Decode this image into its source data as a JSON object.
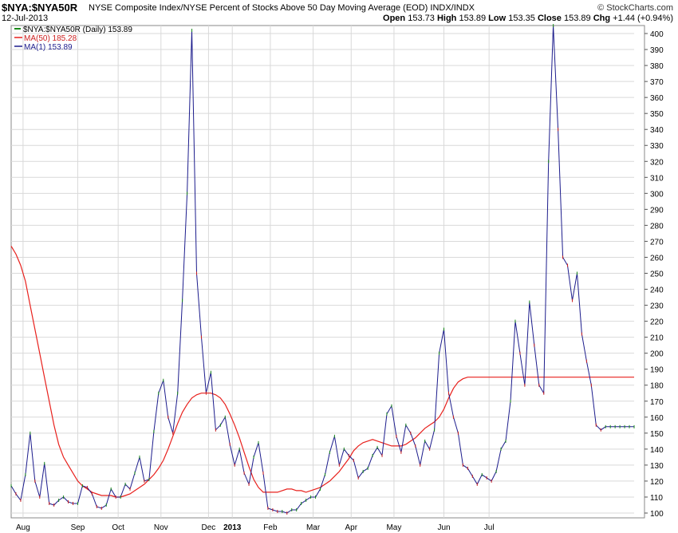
{
  "header": {
    "symbol": "$NYA:$NYA50R",
    "description": "NYSE Composite Index/NYSE Percent of Stocks Above 50 Day Moving Average (EOD) INDX/INDX",
    "date": "12-Jul-2013",
    "brand": "© StockCharts.com",
    "open_label": "Open",
    "open_value": "153.73",
    "high_label": "High",
    "high_value": "153.89",
    "low_label": "Low",
    "low_value": "153.35",
    "close_label": "Close",
    "close_value": "153.89",
    "chg_label": "Chg",
    "chg_value": "+1.44 (+0.94%)"
  },
  "legend": {
    "price": "$NYA:$NYA50R (Daily) 153.89",
    "ma50": "MA(50) 185.28",
    "ma1": "MA(1) 153.89"
  },
  "colors": {
    "price_line": "#1c1c8c",
    "ma50_line": "#e8201c",
    "grid": "#d9d9d9",
    "up_tick": "#1a8a1a",
    "down_tick": "#cc2020",
    "axis_text": "#000000"
  },
  "chart_data": {
    "type": "line",
    "ylim": [
      97,
      405
    ],
    "yticks": [
      100,
      110,
      120,
      130,
      140,
      150,
      160,
      170,
      180,
      190,
      200,
      210,
      220,
      230,
      240,
      250,
      260,
      270,
      280,
      290,
      300,
      310,
      320,
      330,
      340,
      350,
      360,
      370,
      380,
      390,
      400
    ],
    "xticks": [
      "Aug",
      "Sep",
      "Oct",
      "Nov",
      "Dec",
      "2013",
      "Feb",
      "Mar",
      "Apr",
      "May",
      "Jun",
      "Jul"
    ],
    "x_range": [
      0,
      262
    ],
    "xtick_positions": [
      5,
      28,
      45,
      63,
      83,
      93,
      109,
      127,
      143,
      161,
      182,
      201
    ],
    "grid": true,
    "legend": "top-left",
    "series": [
      {
        "name": "$NYA:$NYA50R (Daily)",
        "x": [
          0,
          2,
          4,
          6,
          8,
          10,
          12,
          14,
          16,
          18,
          20,
          22,
          24,
          26,
          28,
          30,
          32,
          34,
          36,
          38,
          40,
          42,
          44,
          46,
          48,
          50,
          52,
          54,
          56,
          58,
          60,
          62,
          64,
          66,
          68,
          70,
          72,
          74,
          76,
          78,
          80,
          82,
          84,
          86,
          88,
          90,
          92,
          94,
          96,
          98,
          100,
          102,
          104,
          106,
          108,
          110,
          112,
          114,
          116,
          118,
          120,
          122,
          124,
          126,
          128,
          130,
          132,
          134,
          136,
          138,
          140,
          142,
          144,
          146,
          148,
          150,
          152,
          154,
          156,
          158,
          160,
          162,
          164,
          166,
          168,
          170,
          172,
          174,
          176,
          178,
          180,
          182,
          184,
          186,
          188,
          190,
          192,
          194,
          196,
          198,
          200,
          202,
          204,
          206,
          208,
          210,
          212,
          214,
          216,
          218,
          220,
          222,
          224,
          226,
          228,
          230,
          232,
          234,
          236,
          238,
          240,
          242,
          244,
          246,
          248,
          250,
          252,
          254,
          256,
          258,
          260,
          262
        ],
        "values": [
          117,
          112,
          108,
          124,
          150,
          120,
          110,
          131,
          106,
          105,
          108,
          110,
          107,
          106,
          106,
          117,
          116,
          112,
          104,
          103,
          105,
          115,
          110,
          110,
          118,
          115,
          125,
          135,
          120,
          121,
          151,
          175,
          183,
          160,
          150,
          175,
          233,
          300,
          402,
          250,
          210,
          175,
          188,
          152,
          155,
          160,
          143,
          130,
          140,
          125,
          118,
          135,
          144,
          125,
          103,
          102,
          101,
          101,
          100,
          102,
          102,
          106,
          108,
          110,
          110,
          115,
          124,
          138,
          148,
          130,
          140,
          136,
          133,
          122,
          126,
          128,
          136,
          141,
          136,
          162,
          167,
          148,
          138,
          155,
          150,
          142,
          130,
          145,
          140,
          152,
          200,
          215,
          175,
          160,
          150,
          130,
          128,
          123,
          118,
          124,
          122,
          120,
          126,
          140,
          145,
          170,
          220,
          200,
          180,
          232,
          205,
          180,
          175,
          320,
          405,
          340,
          260,
          255,
          233,
          250,
          212,
          195,
          180,
          155,
          152,
          154,
          154,
          154,
          154,
          154,
          154,
          154
        ]
      },
      {
        "name": "MA(50)",
        "x": [
          0,
          2,
          4,
          6,
          8,
          10,
          12,
          14,
          16,
          18,
          20,
          22,
          24,
          26,
          28,
          30,
          32,
          34,
          36,
          38,
          40,
          42,
          44,
          46,
          48,
          50,
          52,
          54,
          56,
          58,
          60,
          62,
          64,
          66,
          68,
          70,
          72,
          74,
          76,
          78,
          80,
          82,
          84,
          86,
          88,
          90,
          92,
          94,
          96,
          98,
          100,
          102,
          104,
          106,
          108,
          110,
          112,
          114,
          116,
          118,
          120,
          122,
          124,
          126,
          128,
          130,
          132,
          134,
          136,
          138,
          140,
          142,
          144,
          146,
          148,
          150,
          152,
          154,
          156,
          158,
          160,
          162,
          164,
          166,
          168,
          170,
          172,
          174,
          176,
          178,
          180,
          182,
          184,
          186,
          188,
          190,
          192,
          194,
          196,
          198,
          200,
          202,
          204,
          206,
          208,
          210,
          212,
          214,
          216,
          218,
          220,
          222,
          224,
          226,
          228,
          230,
          232,
          234,
          236,
          238,
          240,
          242,
          244,
          246,
          248,
          250,
          252,
          254,
          256,
          258,
          260,
          262
        ],
        "values": [
          267,
          262,
          255,
          245,
          230,
          215,
          200,
          185,
          170,
          155,
          143,
          135,
          130,
          125,
          120,
          117,
          115,
          113,
          112,
          111,
          111,
          111,
          110,
          110,
          111,
          112,
          114,
          116,
          118,
          121,
          124,
          128,
          133,
          140,
          148,
          156,
          163,
          168,
          172,
          174,
          175,
          175,
          175,
          174,
          172,
          168,
          162,
          155,
          147,
          138,
          129,
          121,
          116,
          113,
          113,
          113,
          113,
          114,
          115,
          115,
          114,
          114,
          113,
          114,
          115,
          116,
          118,
          120,
          123,
          126,
          130,
          134,
          139,
          142,
          144,
          145,
          146,
          145,
          144,
          143,
          142,
          142,
          142,
          143,
          145,
          147,
          150,
          153,
          155,
          157,
          160,
          165,
          172,
          178,
          182,
          184,
          185,
          185,
          185,
          185,
          185,
          185,
          185,
          185,
          185,
          185,
          185,
          185,
          185,
          185,
          185,
          185,
          185,
          185,
          185,
          185,
          185,
          185,
          185,
          185,
          185,
          185,
          185,
          185,
          185,
          185,
          185,
          185,
          185,
          185,
          185,
          185
        ]
      }
    ]
  }
}
